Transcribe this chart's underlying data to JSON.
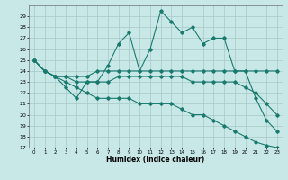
{
  "xlabel": "Humidex (Indice chaleur)",
  "x_values": [
    0,
    1,
    2,
    3,
    4,
    5,
    6,
    7,
    8,
    9,
    10,
    11,
    12,
    13,
    14,
    15,
    16,
    17,
    18,
    19,
    20,
    21,
    22,
    23
  ],
  "series": [
    [
      25,
      24,
      23.5,
      22.5,
      21.5,
      23,
      23,
      24.5,
      26.5,
      27.5,
      24,
      26,
      29.5,
      28.5,
      27.5,
      28,
      26.5,
      27,
      27,
      24,
      24,
      21.5,
      19.5,
      18.5
    ],
    [
      25,
      24,
      23.5,
      23.5,
      23.5,
      23.5,
      24,
      24,
      24,
      24,
      24,
      24,
      24,
      24,
      24,
      24,
      24,
      24,
      24,
      24,
      24,
      24,
      24,
      24
    ],
    [
      25,
      24,
      23.5,
      23.5,
      23,
      23,
      23,
      23,
      23.5,
      23.5,
      23.5,
      23.5,
      23.5,
      23.5,
      23.5,
      23,
      23,
      23,
      23,
      23,
      22.5,
      22,
      21,
      20
    ],
    [
      25,
      24,
      23.5,
      23,
      22.5,
      22,
      21.5,
      21.5,
      21.5,
      21.5,
      21,
      21,
      21,
      21,
      20.5,
      20,
      20,
      19.5,
      19,
      18.5,
      18,
      17.5,
      17.2,
      17
    ]
  ],
  "line_color": "#1a7a6e",
  "bg_color": "#c8e8e8",
  "grid_color": "#a8c8c8",
  "ylim": [
    17,
    30
  ],
  "yticks": [
    17,
    18,
    19,
    20,
    21,
    22,
    23,
    24,
    25,
    26,
    27,
    28,
    29
  ],
  "xticks": [
    0,
    1,
    2,
    3,
    4,
    5,
    6,
    7,
    8,
    9,
    10,
    11,
    12,
    13,
    14,
    15,
    16,
    17,
    18,
    19,
    20,
    21,
    22,
    23
  ]
}
